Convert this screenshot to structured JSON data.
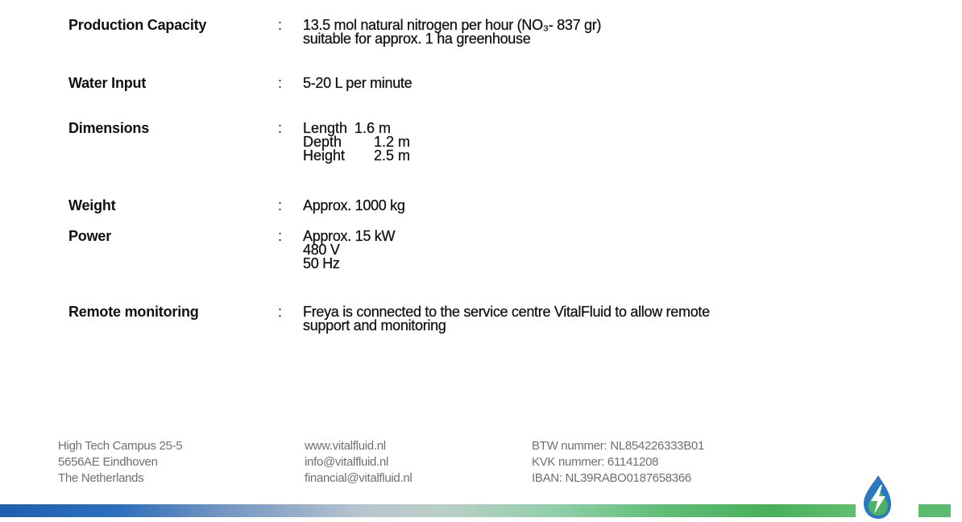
{
  "specs": [
    {
      "label": "Production Capacity",
      "colon": ":",
      "lines": [
        "13.5 mol natural nitrogen per hour (NO₃- 837 gr)",
        "suitable for approx. 1 ha greenhouse"
      ]
    },
    {
      "label": "Water Input",
      "colon": ":",
      "lines": [
        "5-20 L per minute"
      ]
    },
    {
      "label": "Dimensions",
      "colon": ":",
      "dimensions": [
        {
          "name": "Length",
          "value": "1.6 m"
        },
        {
          "name": "Depth",
          "value": "1.2 m"
        },
        {
          "name": "Height",
          "value": "2.5 m"
        }
      ]
    },
    {
      "label": "Weight",
      "colon": ":",
      "lines": [
        "Approx. 1000 kg"
      ]
    },
    {
      "label": "Power",
      "colon": ":",
      "lines": [
        "Approx. 15 kW",
        "480 V",
        "50 Hz"
      ]
    },
    {
      "label": "Remote monitoring",
      "colon": ":",
      "lines": [
        "Freya is connected to the service centre VitalFluid to allow remote",
        "support and monitoring"
      ]
    }
  ],
  "footer": {
    "address": [
      "High Tech Campus 25-5",
      "5656AE Eindhoven",
      "The Netherlands"
    ],
    "contact": [
      "www.vitalfluid.nl",
      "info@vitalfluid.nl",
      "financial@vitalfluid.nl"
    ],
    "registration": [
      "BTW nummer: NL854226333B01",
      "KVK nummer: 61141208",
      "IBAN: NL39RABO0187658366"
    ]
  },
  "colors": {
    "bar_blue": "#1f5fae",
    "bar_green": "#47b05b",
    "logo_blue": "#2a78c2",
    "logo_green": "#4cb263"
  },
  "icons": {
    "logo": "water-drop-lightning-logo"
  }
}
